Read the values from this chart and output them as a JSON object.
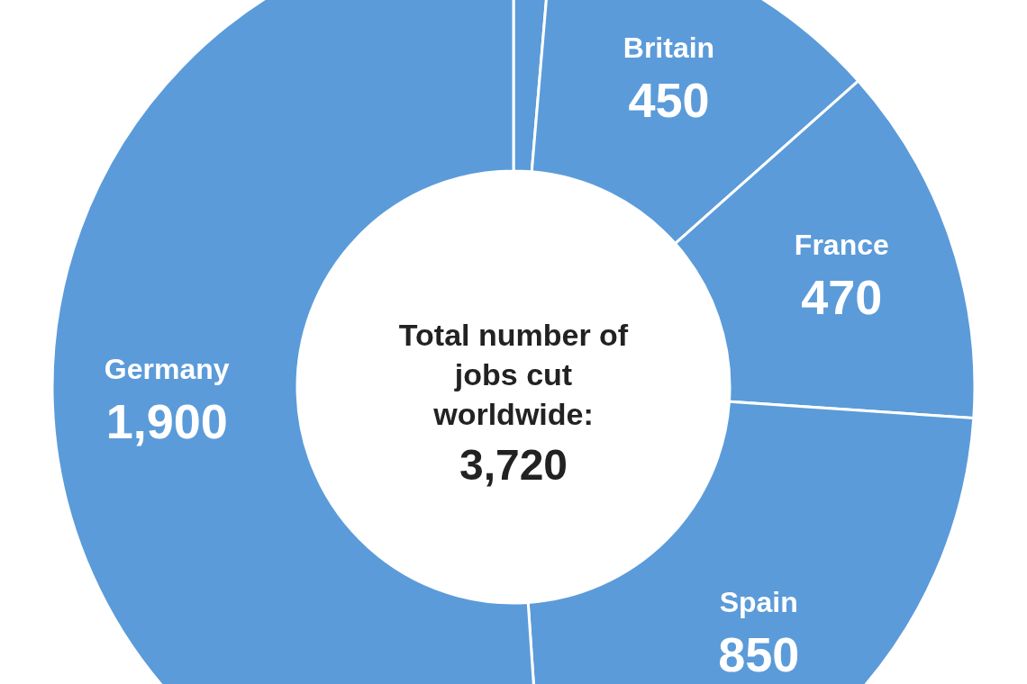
{
  "chart_data": {
    "type": "donut",
    "title": "Total number of jobs cut worldwide:",
    "totals": [
      "3,720"
    ],
    "categories": [
      null,
      "Britain",
      "France",
      "Spain",
      "Germany"
    ],
    "values": [
      50,
      450,
      470,
      850,
      1900
    ],
    "value_labels": [
      null,
      "450",
      "470",
      "850",
      "1,900"
    ],
    "colors": [
      "#5b9bd9",
      "#5b9bd9",
      "#5b9bd9",
      "#5b9bd9",
      "#5b9bd9"
    ]
  }
}
